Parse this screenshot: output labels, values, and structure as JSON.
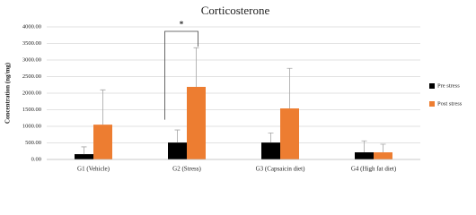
{
  "chart_data": {
    "type": "bar",
    "title": "Corticosterone",
    "y_label": "Concentration (ng/mg)",
    "categories": [
      "G1 (Vehicle)",
      "G2 (Stress)",
      "G3 (Capsaicin diet)",
      "G4 (High fat diet)"
    ],
    "series": [
      {
        "name": "Pre stress",
        "color": "#000000",
        "values": [
          160,
          510,
          510,
          215
        ],
        "errors": [
          220,
          380,
          290,
          345
        ]
      },
      {
        "name": "Post stress",
        "color": "#ed7d31",
        "values": [
          1050,
          2190,
          1540,
          215
        ],
        "errors": [
          1050,
          1180,
          1210,
          245
        ]
      }
    ],
    "ylim": [
      0,
      4000
    ],
    "yticks": [
      {
        "value": 0,
        "label": "0.00"
      },
      {
        "value": 500,
        "label": "500.00"
      },
      {
        "value": 1000,
        "label": "1000.00"
      },
      {
        "value": 1500,
        "label": "1500.00"
      },
      {
        "value": 2000,
        "label": "2000.00"
      },
      {
        "value": 2500,
        "label": "2500.00"
      },
      {
        "value": 3000,
        "label": "3000.00"
      },
      {
        "value": 3500,
        "label": "3500.00"
      },
      {
        "value": 4000,
        "label": "4000.00"
      }
    ],
    "grid": true,
    "legend": "right",
    "annotation": "*"
  }
}
